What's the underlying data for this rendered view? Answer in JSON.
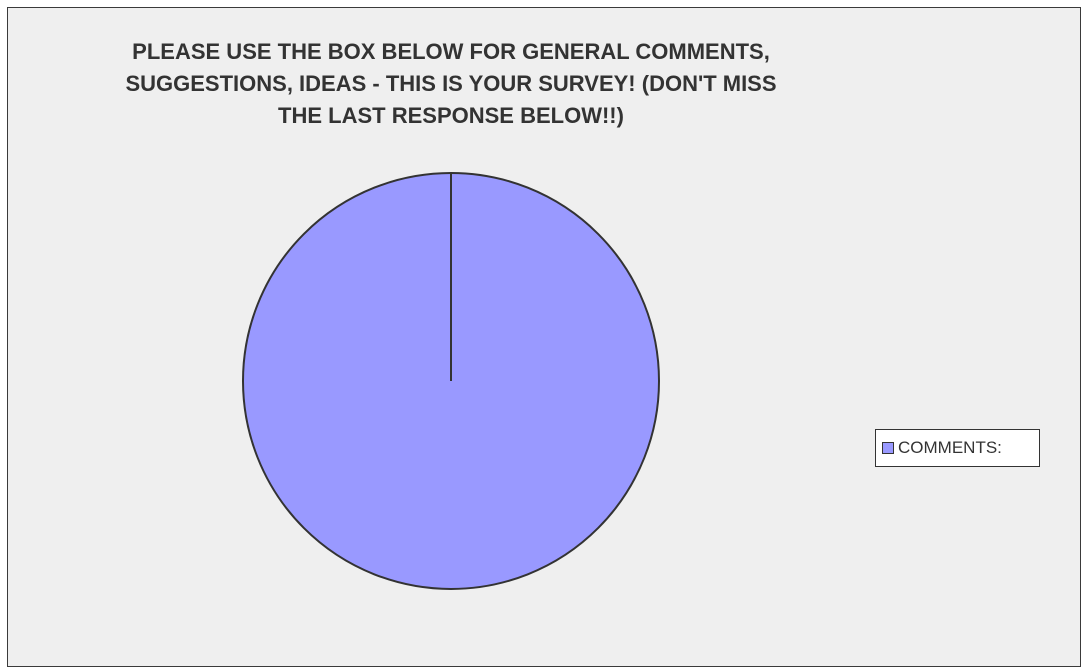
{
  "chart_data": {
    "type": "pie",
    "title": "PLEASE USE THE BOX BELOW FOR GENERAL COMMENTS,\nSUGGESTIONS, IDEAS - THIS IS YOUR SURVEY! (DON'T MISS\nTHE LAST RESPONSE BELOW!!)",
    "categories": [
      "COMMENTS:"
    ],
    "values": [
      100
    ],
    "colors": [
      "#9999ff"
    ],
    "legend_position": "right"
  }
}
